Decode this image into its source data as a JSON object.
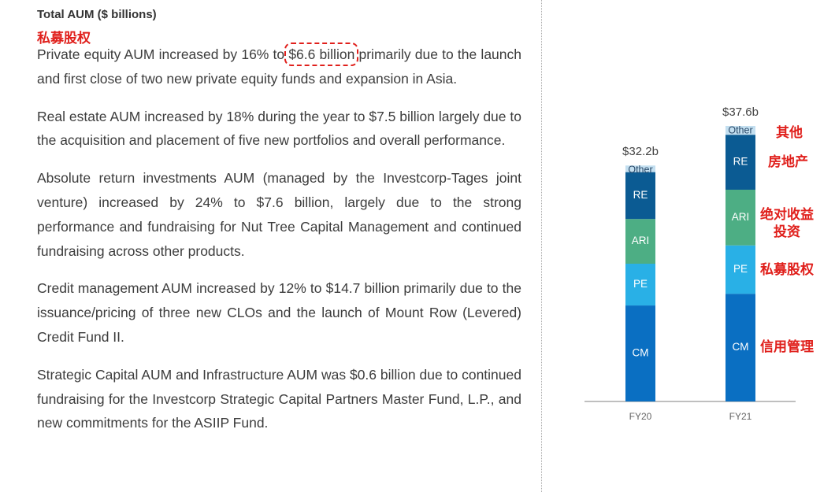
{
  "heading": "Total AUM ($ billions)",
  "paragraphs": [
    [
      "Private equity AUM increased by 16% to ",
      "$6.6 billion",
      " primarily due to the launch and first close of two new private equity funds and expansion in Asia."
    ],
    [
      "Real estate AUM increased by 18% during the year to $7.5 billion largely due to the acquisition and placement of five new portfolios and overall performance."
    ],
    [
      "Absolute return investments AUM (managed by the Investcorp-Tages joint venture) increased by 24% to $7.6 billion, largely due to the strong performance and fundraising for Nut Tree Capital Management and continued fundraising across other products."
    ],
    [
      "Credit management AUM increased by 12% to $14.7 billion primarily due to the issuance/pricing of three new CLOs and the launch of Mount Row (Levered) Credit Fund II."
    ],
    [
      "Strategic Capital AUM and Infrastructure AUM was $0.6 billion due to continued fundraising for the Investcorp Strategic Capital Partners Master Fund, L.P., and new commitments for the ASIIP Fund."
    ]
  ],
  "annotations": [
    "私募股权",
    "其他",
    "房地产",
    "绝对收益\n投资",
    "私募股权",
    "信用管理"
  ],
  "chart_data": {
    "type": "stacked_bar",
    "categories": [
      "FY20",
      "FY21"
    ],
    "series": [
      {
        "name": "CM",
        "color": "#0a6fc2",
        "values": [
          13.1,
          14.7
        ]
      },
      {
        "name": "PE",
        "color": "#29b0e6",
        "values": [
          5.7,
          6.6
        ]
      },
      {
        "name": "ARI",
        "color": "#4dae84",
        "values": [
          6.1,
          7.6
        ]
      },
      {
        "name": "RE",
        "color": "#0b5b93",
        "values": [
          6.4,
          7.5
        ]
      },
      {
        "name": "Other",
        "color": "#c3dff0",
        "values": [
          0.9,
          1.2
        ]
      }
    ],
    "totals": {
      "values": [
        32.2,
        37.6
      ],
      "value_labels": [
        "$32.2b",
        "$37.6b"
      ]
    }
  }
}
